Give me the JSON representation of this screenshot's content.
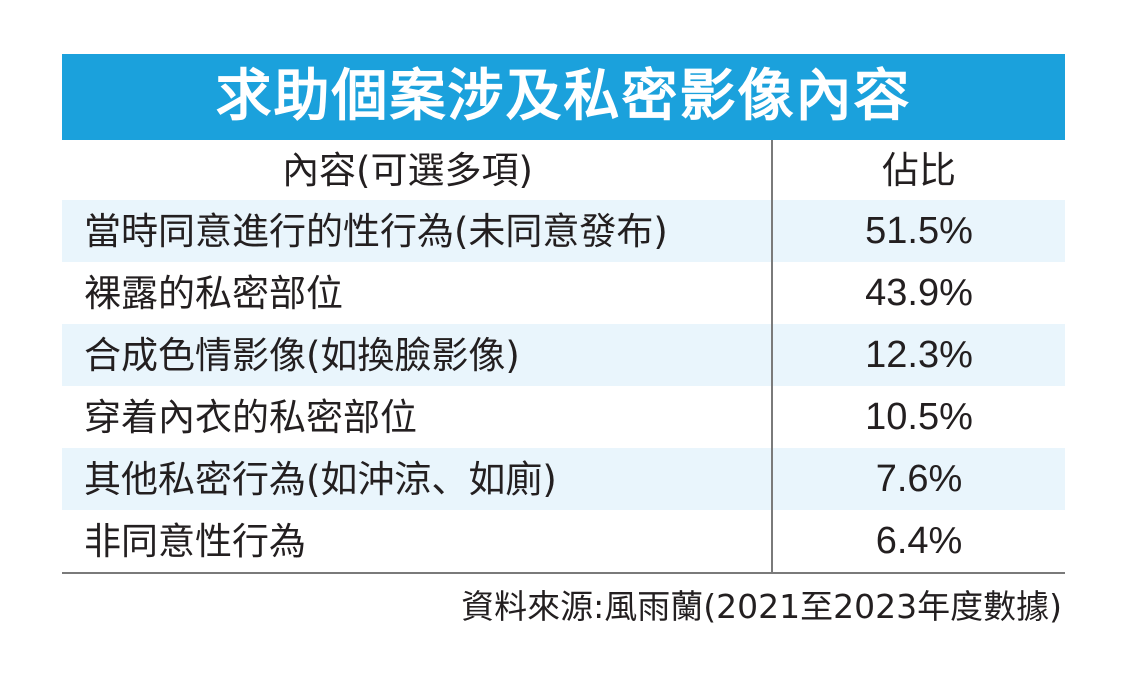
{
  "title": "求助個案涉及私密影像內容",
  "chart_data": {
    "type": "table",
    "columns": [
      "內容(可選多項)",
      "佔比"
    ],
    "rows": [
      {
        "label": "當時同意進行的性行為(未同意發布)",
        "value": "51.5%"
      },
      {
        "label": "裸露的私密部位",
        "value": "43.9%"
      },
      {
        "label": "合成色情影像(如換臉影像)",
        "value": "12.3%"
      },
      {
        "label": "穿着內衣的私密部位",
        "value": "10.5%"
      },
      {
        "label": "其他私密行為(如沖涼、如廁)",
        "value": "7.6%"
      },
      {
        "label": "非同意性行為",
        "value": "6.4%"
      }
    ]
  },
  "source": "資料來源:風雨蘭(2021至2023年度數據)",
  "colors": {
    "header_bg": "#1ba1dc",
    "stripe": "#e9f5fc"
  }
}
